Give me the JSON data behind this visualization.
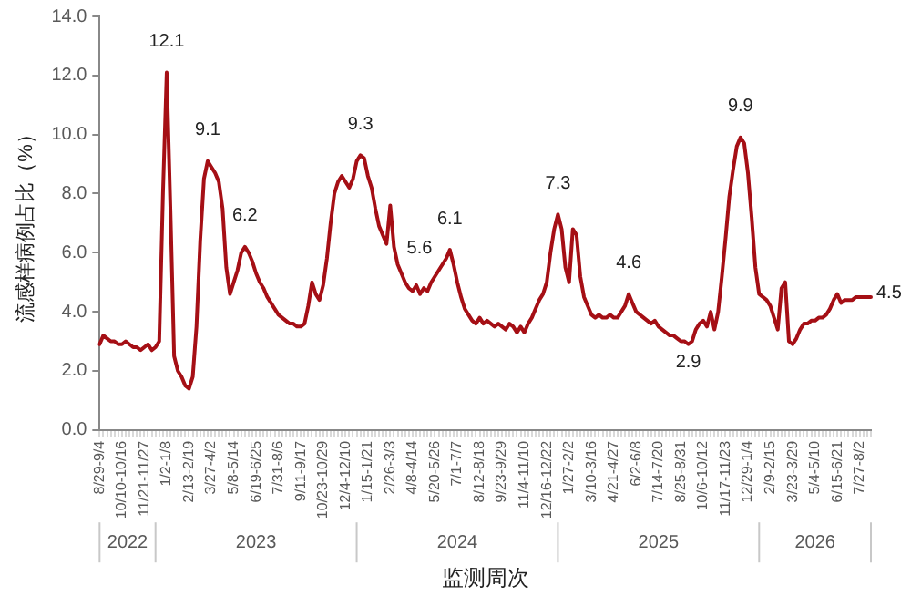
{
  "chart_data": {
    "type": "line",
    "ylabel": "流感样病例占比（%）",
    "xlabel": "监测周次",
    "color": "#a50f15",
    "ylim": [
      0,
      14
    ],
    "yticks": [
      {
        "value": 0,
        "label": "0.0"
      },
      {
        "value": 2,
        "label": "2.0"
      },
      {
        "value": 4,
        "label": "4.0"
      },
      {
        "value": 6,
        "label": "6.0"
      },
      {
        "value": 8,
        "label": "8.0"
      },
      {
        "value": 10,
        "label": "10.0"
      },
      {
        "value": 12,
        "label": "12.0"
      },
      {
        "value": 14,
        "label": "14.0"
      }
    ],
    "categories": [
      "8/29-9/4",
      null,
      null,
      null,
      null,
      null,
      "10/10-10/16",
      null,
      null,
      null,
      null,
      null,
      "11/21-11/27",
      null,
      null,
      null,
      null,
      null,
      "1/2-1/8",
      null,
      null,
      null,
      null,
      null,
      "2/13-2/19",
      null,
      null,
      null,
      null,
      null,
      "3/27-4/2",
      null,
      null,
      null,
      null,
      null,
      "5/8-5/14",
      null,
      null,
      null,
      null,
      null,
      "6/19-6/25",
      null,
      null,
      null,
      null,
      null,
      "7/31-8/6",
      null,
      null,
      null,
      null,
      null,
      "9/11-9/17",
      null,
      null,
      null,
      null,
      null,
      "10/23-10/29",
      null,
      null,
      null,
      null,
      null,
      "12/4-12/10",
      null,
      null,
      null,
      null,
      null,
      "1/15-1/21",
      null,
      null,
      null,
      null,
      null,
      "2/26-3/3",
      null,
      null,
      null,
      null,
      null,
      "4/8-4/14",
      null,
      null,
      null,
      null,
      null,
      "5/20-5/26",
      null,
      null,
      null,
      null,
      null,
      "7/1-7/7",
      null,
      null,
      null,
      null,
      null,
      "8/12-8/18",
      null,
      null,
      null,
      null,
      null,
      "9/23-9/29",
      null,
      null,
      null,
      null,
      null,
      "11/4-11/10",
      null,
      null,
      null,
      null,
      null,
      "12/16-12/22",
      null,
      null,
      null,
      null,
      null,
      "1/27-2/2",
      null,
      null,
      null,
      null,
      null,
      "3/10-3/16",
      null,
      null,
      null,
      null,
      null,
      "4/21-4/27",
      null,
      null,
      null,
      null,
      null,
      "6/2-6/8",
      null,
      null,
      null,
      null,
      null,
      "7/14-7/20",
      null,
      null,
      null,
      null,
      null,
      "8/25-8/31",
      null,
      null,
      null,
      null,
      null,
      "10/6-10/12",
      null,
      null,
      null,
      null,
      null,
      "11/17-11/23",
      null,
      null,
      null,
      null,
      null,
      "12/29-1/4",
      null,
      null,
      null,
      null,
      null,
      "2/9-2/15",
      null,
      null,
      null,
      null,
      null,
      "3/23-3/29",
      null,
      null,
      null,
      null,
      null,
      "5/4-5/10",
      null,
      null,
      null,
      null,
      null,
      "6/15-6/21",
      null,
      null,
      null,
      null,
      null,
      "7/27-8/2",
      null,
      null,
      null
    ],
    "values": [
      2.9,
      3.2,
      3.1,
      3.0,
      3.0,
      2.9,
      2.9,
      3.0,
      2.9,
      2.8,
      2.8,
      2.7,
      2.8,
      2.9,
      2.7,
      2.8,
      3.0,
      8.0,
      12.1,
      7.5,
      2.5,
      2.0,
      1.8,
      1.5,
      1.4,
      1.8,
      3.5,
      6.4,
      8.5,
      9.1,
      8.9,
      8.7,
      8.4,
      7.5,
      5.5,
      4.6,
      5.0,
      5.4,
      6.0,
      6.2,
      6.0,
      5.7,
      5.3,
      5.0,
      4.8,
      4.5,
      4.3,
      4.1,
      3.9,
      3.8,
      3.7,
      3.6,
      3.6,
      3.5,
      3.5,
      3.6,
      4.2,
      5.0,
      4.6,
      4.4,
      4.9,
      5.8,
      7.0,
      8.0,
      8.4,
      8.6,
      8.4,
      8.2,
      8.5,
      9.1,
      9.3,
      9.2,
      8.6,
      8.2,
      7.5,
      6.9,
      6.6,
      6.3,
      7.6,
      6.2,
      5.6,
      5.3,
      5.0,
      4.8,
      4.7,
      4.9,
      4.6,
      4.8,
      4.7,
      5.0,
      5.2,
      5.4,
      5.6,
      5.8,
      6.1,
      5.6,
      5.0,
      4.5,
      4.1,
      3.9,
      3.7,
      3.6,
      3.8,
      3.6,
      3.7,
      3.6,
      3.5,
      3.6,
      3.5,
      3.4,
      3.6,
      3.5,
      3.3,
      3.5,
      3.3,
      3.6,
      3.8,
      4.1,
      4.4,
      4.6,
      5.0,
      6.0,
      6.8,
      7.3,
      6.8,
      5.5,
      5.0,
      6.8,
      6.6,
      5.2,
      4.5,
      4.2,
      3.9,
      3.8,
      3.9,
      3.8,
      3.8,
      3.9,
      3.8,
      3.8,
      4.0,
      4.2,
      4.6,
      4.3,
      4.0,
      3.9,
      3.8,
      3.7,
      3.6,
      3.7,
      3.5,
      3.4,
      3.3,
      3.2,
      3.2,
      3.1,
      3.0,
      3.0,
      2.9,
      3.0,
      3.4,
      3.6,
      3.7,
      3.5,
      4.0,
      3.4,
      4.0,
      5.2,
      6.5,
      7.9,
      8.8,
      9.6,
      9.9,
      9.7,
      8.7,
      7.2,
      5.5,
      4.6,
      4.5,
      4.4,
      4.2,
      3.8,
      3.4,
      4.8,
      5.0,
      3.0,
      2.9,
      3.1,
      3.4,
      3.6,
      3.6,
      3.7,
      3.7,
      3.8,
      3.8,
      3.9,
      4.1,
      4.4,
      4.6,
      4.3,
      4.4,
      4.4,
      4.4,
      4.5,
      4.5,
      4.5,
      4.5,
      4.5
    ],
    "value_labels": [
      null,
      null,
      null,
      null,
      null,
      null,
      null,
      null,
      null,
      null,
      null,
      null,
      null,
      null,
      null,
      null,
      null,
      null,
      "12.1",
      null,
      null,
      null,
      null,
      null,
      null,
      null,
      null,
      null,
      null,
      "9.1",
      null,
      null,
      null,
      null,
      null,
      null,
      null,
      null,
      null,
      "6.2",
      null,
      null,
      null,
      null,
      null,
      null,
      null,
      null,
      null,
      null,
      null,
      null,
      null,
      null,
      null,
      null,
      null,
      null,
      null,
      null,
      null,
      null,
      null,
      null,
      null,
      null,
      null,
      null,
      null,
      null,
      "9.3",
      null,
      null,
      null,
      null,
      null,
      null,
      null,
      null,
      null,
      "5.6",
      null,
      null,
      null,
      null,
      null,
      null,
      null,
      null,
      null,
      null,
      null,
      null,
      null,
      "6.1",
      null,
      null,
      null,
      null,
      null,
      null,
      null,
      null,
      null,
      null,
      null,
      null,
      null,
      null,
      null,
      null,
      null,
      null,
      null,
      null,
      null,
      null,
      null,
      null,
      null,
      null,
      null,
      null,
      "7.3",
      null,
      null,
      null,
      null,
      null,
      null,
      null,
      null,
      null,
      null,
      null,
      null,
      null,
      null,
      null,
      null,
      null,
      null,
      "4.6",
      null,
      null,
      null,
      null,
      null,
      null,
      null,
      null,
      null,
      null,
      null,
      null,
      null,
      null,
      null,
      "2.9",
      null,
      null,
      null,
      null,
      null,
      null,
      null,
      null,
      null,
      null,
      null,
      null,
      null,
      "9.9",
      null,
      null,
      null,
      null,
      null,
      null,
      null,
      null,
      null,
      null,
      null,
      null,
      null,
      null,
      null,
      null,
      null,
      null,
      null,
      null,
      null,
      null,
      null,
      null,
      null,
      null,
      null,
      null,
      null,
      null,
      null,
      null,
      null,
      null,
      "4.5"
    ],
    "annotations": [
      "2022",
      "2023",
      "2024",
      "2025",
      "2026"
    ],
    "legend": false
  }
}
